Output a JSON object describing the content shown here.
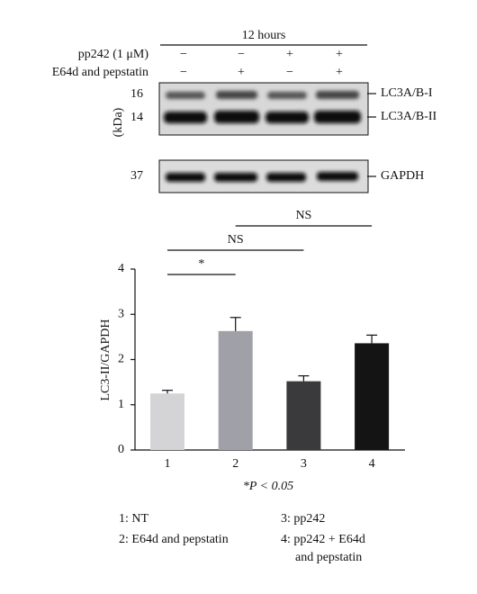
{
  "blot": {
    "time": "12 hours",
    "treatments": [
      {
        "label": "pp242 (1 μM)",
        "signs": [
          "−",
          "−",
          "+",
          "+"
        ]
      },
      {
        "label": "E64d and pepstatin",
        "signs": [
          "−",
          "+",
          "−",
          "+"
        ]
      }
    ],
    "markers": [
      "16",
      "14",
      "37"
    ],
    "marker_unit": "(kDa)",
    "bands": [
      "LC3A/B-I",
      "LC3A/B-II",
      "GAPDH"
    ]
  },
  "chart_data": {
    "type": "bar",
    "y_label": "LC3-II/GAPDH",
    "categories": [
      "1",
      "2",
      "3",
      "4"
    ],
    "values": [
      1.25,
      2.63,
      1.52,
      2.36
    ],
    "errors": [
      0.07,
      0.3,
      0.12,
      0.18
    ],
    "colors": [
      "#d4d4d6",
      "#a0a0a8",
      "#3a3a3c",
      "#141414"
    ],
    "ylim": [
      0,
      4
    ],
    "yticks": [
      0,
      1,
      2,
      3,
      4
    ],
    "significance": [
      "*",
      "NS",
      "NS"
    ],
    "footnote": "*P < 0.05"
  },
  "legend_notes": [
    "1: NT",
    "2: E64d and pepstatin",
    "3: pp242",
    "4: pp242 + E64d",
    "and pepstatin"
  ]
}
